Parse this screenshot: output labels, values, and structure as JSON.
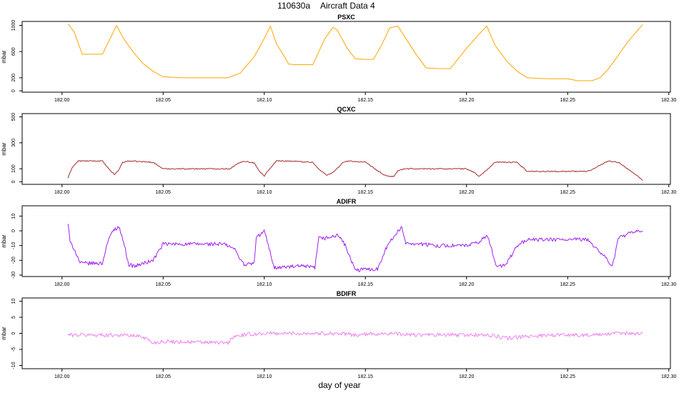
{
  "figure": {
    "title_code": "110630a",
    "title_name": "Aircraft Data 4",
    "xlabel": "day of year"
  },
  "chart_data": [
    {
      "type": "line",
      "title": "PSXC",
      "ylabel": "mbar",
      "color": "#ffa500",
      "xlim": [
        181.9803,
        182.3008
      ],
      "ylim": [
        -20,
        1060
      ],
      "xticks": [
        182.0,
        182.05,
        182.1,
        182.15,
        182.2,
        182.25,
        182.3
      ],
      "xtick_labels": [
        "182.00",
        "182.05",
        "182.10",
        "182.15",
        "182.20",
        "182.25",
        "182.30"
      ],
      "yticks": [
        0,
        200,
        600,
        1000
      ],
      "ytick_labels": [
        "0",
        "200",
        "600",
        "1000"
      ],
      "noise": 0,
      "x": [
        182.003,
        182.006,
        182.01,
        182.02,
        182.027,
        182.03,
        182.035,
        182.04,
        182.045,
        182.05,
        182.06,
        182.07,
        182.082,
        182.088,
        182.095,
        182.1,
        182.103,
        182.106,
        182.11,
        182.112,
        182.115,
        182.124,
        182.13,
        182.134,
        182.136,
        182.141,
        182.145,
        182.15,
        182.154,
        182.158,
        182.162,
        182.166,
        182.17,
        182.175,
        182.18,
        182.186,
        182.192,
        182.2,
        182.206,
        182.21,
        182.214,
        182.22,
        182.225,
        182.23,
        182.24,
        182.25,
        182.255,
        182.262,
        182.266,
        182.27,
        182.274,
        182.28,
        182.287
      ],
      "y": [
        1020,
        900,
        560,
        560,
        1000,
        820,
        600,
        420,
        300,
        215,
        200,
        200,
        200,
        270,
        520,
        800,
        990,
        720,
        520,
        410,
        400,
        400,
        800,
        970,
        930,
        650,
        490,
        480,
        480,
        700,
        960,
        990,
        800,
        560,
        350,
        340,
        340,
        650,
        860,
        990,
        700,
        450,
        300,
        200,
        185,
        185,
        155,
        155,
        200,
        330,
        500,
        760,
        1010
      ]
    },
    {
      "type": "line",
      "title": "QCXC",
      "ylabel": "mbar",
      "color": "#a52a2a",
      "xlim": [
        181.9803,
        182.3008
      ],
      "ylim": [
        -20,
        525
      ],
      "xticks": [
        182.0,
        182.05,
        182.1,
        182.15,
        182.2,
        182.25,
        182.3
      ],
      "xtick_labels": [
        "182.00",
        "182.05",
        "182.10",
        "182.15",
        "182.20",
        "182.25",
        "182.30"
      ],
      "yticks": [
        0,
        100,
        300,
        500
      ],
      "ytick_labels": [
        "0",
        "100",
        "300",
        "500"
      ],
      "noise": 4,
      "x": [
        182.003,
        182.005,
        182.008,
        182.02,
        182.023,
        182.026,
        182.028,
        182.03,
        182.033,
        182.045,
        182.05,
        182.07,
        182.083,
        182.087,
        182.09,
        182.095,
        182.098,
        182.1,
        182.103,
        182.106,
        182.112,
        182.124,
        182.127,
        182.131,
        182.135,
        182.139,
        182.142,
        182.15,
        182.156,
        182.16,
        182.164,
        182.166,
        182.17,
        182.2,
        182.204,
        182.206,
        182.21,
        182.214,
        182.225,
        182.23,
        182.26,
        182.27,
        182.275,
        182.285,
        182.287
      ],
      "y": [
        30,
        110,
        160,
        160,
        100,
        55,
        90,
        150,
        160,
        150,
        100,
        100,
        100,
        140,
        160,
        145,
        75,
        45,
        105,
        160,
        160,
        150,
        95,
        50,
        85,
        150,
        160,
        150,
        85,
        45,
        40,
        85,
        100,
        100,
        70,
        40,
        90,
        150,
        150,
        80,
        80,
        160,
        150,
        40,
        10
      ]
    },
    {
      "type": "line",
      "title": "ADIFR",
      "ylabel": "mbar",
      "color": "#a020f0",
      "xlim": [
        181.9803,
        182.3008
      ],
      "ylim": [
        -31,
        17
      ],
      "xticks": [
        182.0,
        182.05,
        182.1,
        182.15,
        182.2,
        182.25,
        182.3
      ],
      "xtick_labels": [
        "182.00",
        "182.05",
        "182.10",
        "182.15",
        "182.20",
        "182.25",
        "182.30"
      ],
      "yticks": [
        -30,
        -20,
        -10,
        0,
        10
      ],
      "ytick_labels": [
        "-30",
        "-20",
        "-10",
        "0",
        "10"
      ],
      "noise": 1.3,
      "x": [
        182.003,
        182.004,
        182.006,
        182.009,
        182.02,
        182.022,
        182.025,
        182.028,
        182.03,
        182.033,
        182.036,
        182.045,
        182.05,
        182.08,
        182.085,
        182.09,
        182.095,
        182.096,
        182.1,
        182.102,
        182.105,
        182.118,
        182.125,
        182.127,
        182.13,
        182.137,
        182.14,
        182.145,
        182.15,
        182.156,
        182.16,
        182.165,
        182.168,
        182.17,
        182.185,
        182.19,
        182.2,
        182.206,
        182.21,
        182.212,
        182.215,
        182.22,
        182.225,
        182.23,
        182.26,
        182.27,
        182.272,
        182.275,
        182.28,
        182.287
      ],
      "y": [
        5,
        -8,
        -12,
        -22,
        -22,
        -10,
        0,
        3,
        -5,
        -23,
        -24,
        -20,
        -9,
        -9,
        -12,
        -23,
        -22,
        -5,
        0,
        -10,
        -25,
        -24,
        -25,
        -5,
        -5,
        -3,
        -10,
        -27,
        -26,
        -26,
        -12,
        -2,
        2,
        -8,
        -10,
        -10,
        -10,
        -8,
        -3,
        -10,
        -25,
        -22,
        -10,
        -6,
        -6,
        -20,
        -25,
        -5,
        -2,
        0
      ]
    },
    {
      "type": "line",
      "title": "BDIFR",
      "ylabel": "mbar",
      "color": "#ee82ee",
      "xlim": [
        181.9803,
        182.3008
      ],
      "ylim": [
        -11,
        11
      ],
      "xticks": [
        182.0,
        182.05,
        182.1,
        182.15,
        182.2,
        182.25,
        182.3
      ],
      "xtick_labels": [
        "182.00",
        "182.05",
        "182.10",
        "182.15",
        "182.20",
        "182.25",
        "182.30"
      ],
      "yticks": [
        -10,
        -5,
        0,
        5,
        10
      ],
      "ytick_labels": [
        "-10",
        "-5",
        "0",
        "5",
        "10"
      ],
      "noise": 0.6,
      "x": [
        182.003,
        182.03,
        182.04,
        182.045,
        182.05,
        182.07,
        182.082,
        182.085,
        182.09,
        182.1,
        182.11,
        182.125,
        182.135,
        182.145,
        182.16,
        182.175,
        182.19,
        182.2,
        182.21,
        182.22,
        182.24,
        182.25,
        182.265,
        182.275,
        182.287
      ],
      "y": [
        -0.5,
        -0.5,
        -1,
        -3,
        -2.5,
        -2.8,
        -3,
        -1,
        -0.5,
        0,
        0,
        0,
        0,
        -0.5,
        0,
        -0.5,
        -0.5,
        -0.5,
        -0.5,
        -1.5,
        -0.5,
        -0.5,
        -0.5,
        0,
        0
      ]
    }
  ]
}
